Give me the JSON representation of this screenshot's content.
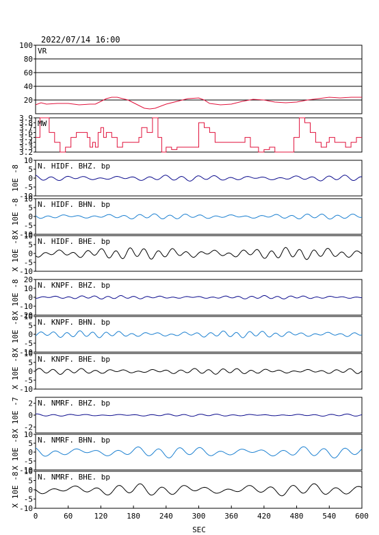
{
  "title": "2022/07/14 16:00",
  "xlabel": "SEC",
  "colors": {
    "red": "#e0103a",
    "navy": "#0a0a8c",
    "blue": "#1a7fd0",
    "black": "#000000"
  },
  "chart_data": {
    "type": "line",
    "x_range": [
      0,
      600
    ],
    "x_ticks": [
      "0",
      "60",
      "120",
      "180",
      "240",
      "300",
      "360",
      "420",
      "480",
      "540",
      "600"
    ],
    "panels": [
      {
        "name": "VR",
        "ylabel": "",
        "ylim": [
          0,
          100
        ],
        "y_ticks": [
          "100",
          "80",
          "60",
          "40",
          "20"
        ],
        "grid": true,
        "color": "red",
        "points": [
          [
            0,
            13
          ],
          [
            10,
            16
          ],
          [
            20,
            14
          ],
          [
            40,
            15
          ],
          [
            60,
            15
          ],
          [
            80,
            13
          ],
          [
            100,
            14
          ],
          [
            110,
            14
          ],
          [
            120,
            18
          ],
          [
            130,
            22
          ],
          [
            140,
            24
          ],
          [
            150,
            24
          ],
          [
            160,
            22
          ],
          [
            170,
            20
          ],
          [
            180,
            16
          ],
          [
            190,
            12
          ],
          [
            200,
            8
          ],
          [
            210,
            7
          ],
          [
            220,
            8
          ],
          [
            240,
            14
          ],
          [
            260,
            18
          ],
          [
            280,
            22
          ],
          [
            300,
            23
          ],
          [
            310,
            20
          ],
          [
            320,
            15
          ],
          [
            340,
            13
          ],
          [
            360,
            14
          ],
          [
            380,
            18
          ],
          [
            400,
            21
          ],
          [
            420,
            20
          ],
          [
            440,
            17
          ],
          [
            460,
            16
          ],
          [
            480,
            17
          ],
          [
            500,
            20
          ],
          [
            520,
            22
          ],
          [
            540,
            24
          ],
          [
            560,
            23
          ],
          [
            580,
            24
          ],
          [
            600,
            24
          ]
        ]
      },
      {
        "name": "MW",
        "ylabel": "",
        "ylim": [
          3.2,
          3.9
        ],
        "y_ticks": [
          "3.9",
          "3.8",
          "3.7",
          "3.6",
          "3.5",
          "3.4",
          "3.3",
          "3.2"
        ],
        "grid": false,
        "color": "red",
        "points": [
          [
            0,
            3.5
          ],
          [
            8,
            3.9
          ],
          [
            20,
            3.9
          ],
          [
            25,
            3.6
          ],
          [
            35,
            3.4
          ],
          [
            45,
            3.2
          ],
          [
            55,
            3.3
          ],
          [
            65,
            3.5
          ],
          [
            75,
            3.6
          ],
          [
            85,
            3.6
          ],
          [
            95,
            3.5
          ],
          [
            100,
            3.3
          ],
          [
            105,
            3.4
          ],
          [
            110,
            3.3
          ],
          [
            115,
            3.6
          ],
          [
            120,
            3.7
          ],
          [
            125,
            3.5
          ],
          [
            130,
            3.6
          ],
          [
            140,
            3.5
          ],
          [
            150,
            3.3
          ],
          [
            160,
            3.4
          ],
          [
            175,
            3.4
          ],
          [
            190,
            3.5
          ],
          [
            195,
            3.7
          ],
          [
            205,
            3.6
          ],
          [
            215,
            3.9
          ],
          [
            225,
            3.5
          ],
          [
            232,
            3.2
          ],
          [
            240,
            3.3
          ],
          [
            250,
            3.25
          ],
          [
            260,
            3.3
          ],
          [
            270,
            3.3
          ],
          [
            290,
            3.3
          ],
          [
            300,
            3.8
          ],
          [
            310,
            3.7
          ],
          [
            320,
            3.6
          ],
          [
            330,
            3.4
          ],
          [
            340,
            3.4
          ],
          [
            350,
            3.4
          ],
          [
            360,
            3.4
          ],
          [
            370,
            3.4
          ],
          [
            385,
            3.5
          ],
          [
            395,
            3.3
          ],
          [
            410,
            3.2
          ],
          [
            420,
            3.25
          ],
          [
            430,
            3.3
          ],
          [
            440,
            3.2
          ],
          [
            460,
            3.2
          ],
          [
            470,
            3.2
          ],
          [
            475,
            3.5
          ],
          [
            485,
            3.9
          ],
          [
            495,
            3.8
          ],
          [
            505,
            3.6
          ],
          [
            515,
            3.4
          ],
          [
            525,
            3.3
          ],
          [
            535,
            3.4
          ],
          [
            540,
            3.5
          ],
          [
            550,
            3.4
          ],
          [
            560,
            3.4
          ],
          [
            570,
            3.3
          ],
          [
            580,
            3.4
          ],
          [
            590,
            3.5
          ],
          [
            600,
            3.5
          ]
        ]
      },
      {
        "name": "N. HIDF. BHZ. bp",
        "ylabel": "10E -8",
        "ylim": [
          -10,
          10
        ],
        "y_ticks": [
          "10",
          "5",
          "0",
          "-5",
          "-10"
        ],
        "grid": false,
        "color": "navy",
        "wave": {
          "amp": 1.3,
          "period": 30,
          "offset": 0
        }
      },
      {
        "name": "N. HIDF. BHN. bp",
        "ylabel": "X 10E -8",
        "ylim": [
          -10,
          10
        ],
        "y_ticks": [
          "10",
          "5",
          "0",
          "-5",
          "-10"
        ],
        "grid": false,
        "color": "blue",
        "wave": {
          "amp": 1.2,
          "period": 28,
          "offset": 0
        }
      },
      {
        "name": "N. HIDF. BHE. bp",
        "ylabel": "X 10E -8",
        "ylim": [
          -10,
          10
        ],
        "y_ticks": [
          "10",
          "5",
          "0",
          "-5",
          "-10"
        ],
        "grid": false,
        "color": "black",
        "wave": {
          "amp": 2.6,
          "period": 26,
          "offset": 0
        }
      },
      {
        "name": "N. KNPF. BHZ. bp",
        "ylabel": "X 10E -8",
        "ylim": [
          -20,
          20
        ],
        "y_ticks": [
          "20",
          "10",
          "0",
          "-10",
          "-20"
        ],
        "grid": false,
        "color": "navy",
        "wave": {
          "amp": 1.5,
          "period": 24,
          "offset": 0
        }
      },
      {
        "name": "N. KNPF. BHN. bp",
        "ylabel": "X 10E -8",
        "ylim": [
          -10,
          10
        ],
        "y_ticks": [
          "10",
          "5",
          "0",
          "-5",
          "-10"
        ],
        "grid": false,
        "color": "blue",
        "wave": {
          "amp": 1.5,
          "period": 24,
          "offset": 0
        }
      },
      {
        "name": "N. KNPF. BHE. bp",
        "ylabel": "X 10E -8",
        "ylim": [
          -10,
          10
        ],
        "y_ticks": [
          "10",
          "5",
          "0",
          "-5",
          "-10"
        ],
        "grid": false,
        "color": "black",
        "wave": {
          "amp": 1.3,
          "period": 26,
          "offset": 0
        }
      },
      {
        "name": "N. NMRF. BHZ. bp",
        "ylabel": "X 10E -7",
        "ylim": [
          -3,
          3
        ],
        "y_ticks": [
          "2",
          "0",
          "-2"
        ],
        "grid": false,
        "color": "navy",
        "wave": {
          "amp": 0.15,
          "period": 30,
          "offset": 0
        }
      },
      {
        "name": "N. NMRF. BHN. bp",
        "ylabel": "X 10E -8",
        "ylim": [
          -10,
          10
        ],
        "y_ticks": [
          "10",
          "5",
          "0",
          "-5",
          "-10"
        ],
        "grid": false,
        "color": "blue",
        "wave": {
          "amp": 2.5,
          "period": 38,
          "offset": 0
        }
      },
      {
        "name": "N. NMRF. BHE. bp",
        "ylabel": "X 10E -8",
        "ylim": [
          -10,
          10
        ],
        "y_ticks": [
          "10",
          "5",
          "0",
          "-5",
          "-10"
        ],
        "grid": false,
        "color": "black",
        "wave": {
          "amp": 2.6,
          "period": 40,
          "offset": 0
        }
      }
    ]
  }
}
